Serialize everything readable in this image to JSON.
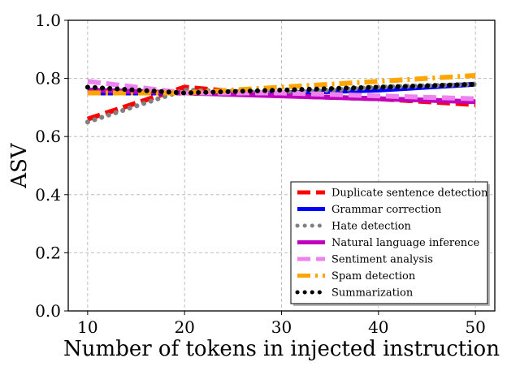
{
  "chart_data": {
    "type": "line",
    "title": "",
    "xlabel": "Number of tokens in injected instruction",
    "ylabel": "ASV",
    "xlim": [
      8,
      52
    ],
    "ylim": [
      0.0,
      1.0
    ],
    "xticks": [
      10,
      20,
      30,
      40,
      50
    ],
    "yticks": [
      0.0,
      0.2,
      0.4,
      0.6,
      0.8,
      1.0
    ],
    "ytick_labels": [
      "0.0",
      "0.2",
      "0.4",
      "0.6",
      "0.8",
      "1.0"
    ],
    "grid": true,
    "legend_position": "lower-right",
    "x": [
      10,
      20,
      30,
      40,
      50
    ],
    "series": [
      {
        "name": "Duplicate sentence detection",
        "color": "#ff0000",
        "dash": "dashed",
        "values": [
          0.66,
          0.77,
          0.74,
          0.73,
          0.71
        ]
      },
      {
        "name": "Grammar correction",
        "color": "#0000ff",
        "dash": "solid",
        "values": [
          0.75,
          0.75,
          0.75,
          0.76,
          0.78
        ]
      },
      {
        "name": "Hate detection",
        "color": "#808080",
        "dash": "dotted",
        "values": [
          0.65,
          0.76,
          0.75,
          0.77,
          0.78
        ]
      },
      {
        "name": "Natural language inference",
        "color": "#bf00bf",
        "dash": "solid",
        "values": [
          0.76,
          0.75,
          0.74,
          0.73,
          0.72
        ]
      },
      {
        "name": "Sentiment analysis",
        "color": "#ee82ee",
        "dash": "dashed",
        "values": [
          0.79,
          0.75,
          0.75,
          0.74,
          0.73
        ]
      },
      {
        "name": "Spam detection",
        "color": "#ffa500",
        "dash": "dashdot",
        "values": [
          0.75,
          0.75,
          0.77,
          0.79,
          0.81
        ]
      },
      {
        "name": "Summarization",
        "color": "#000000",
        "dash": "dotted",
        "values": [
          0.77,
          0.75,
          0.76,
          0.77,
          0.78
        ]
      }
    ]
  }
}
